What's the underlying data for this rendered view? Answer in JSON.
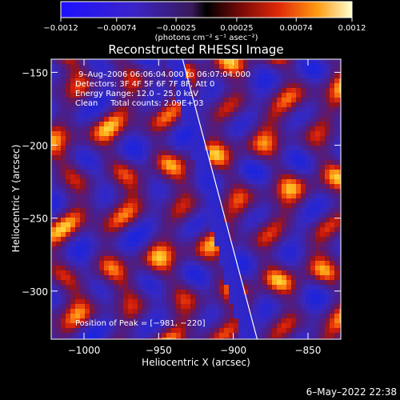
{
  "chart_data": {
    "type": "heatmap",
    "title": "Reconstructed RHESSI Image",
    "xlabel": "Heliocentric X (arcsec)",
    "ylabel": "Heliocentric Y (arcsec)",
    "xlim": [
      -1022,
      -828
    ],
    "ylim": [
      -333,
      -141
    ],
    "x_ticks": [
      -1000,
      -950,
      -900,
      -850
    ],
    "y_ticks": [
      -150,
      -200,
      -250,
      -300
    ],
    "x_tick_labels": [
      "−1000",
      "−950",
      "−900",
      "−850"
    ],
    "y_tick_labels": [
      "−150",
      "−200",
      "−250",
      "−300"
    ],
    "colorbar": {
      "range": [
        -0.0012,
        0.0012
      ],
      "ticks": [
        -0.0012,
        -0.00074,
        -0.00025,
        0.00025,
        0.00074,
        0.0012
      ],
      "tick_labels": [
        "−0.0012",
        "−0.00074",
        "−0.00025",
        "0.00025",
        "0.00074",
        "0.0012"
      ],
      "unit_label": "(photons cm⁻² s⁻¹ asec⁻²)"
    },
    "annotations": [
      "9–Aug–2006 06:06:04.000 to 06:07:04.000",
      "Detectors: 3F 4F 5F 6F 7F 8F, Att 0",
      "Energy Range: 12.0 – 25.0 keV",
      "Clean     Total counts: 2.09E+03"
    ],
    "peak_label": "Position of Peak = [−981, −220]",
    "limb_line": {
      "x": [
        -934,
        -884
      ],
      "y": [
        -141,
        -333
      ]
    },
    "colors": {
      "negative": "#1f2be0",
      "background": "#4a1f8a",
      "mid": "#c81410",
      "high": "#ffe040"
    }
  },
  "footer": {
    "timestamp": "6–May–2022 22:38"
  }
}
